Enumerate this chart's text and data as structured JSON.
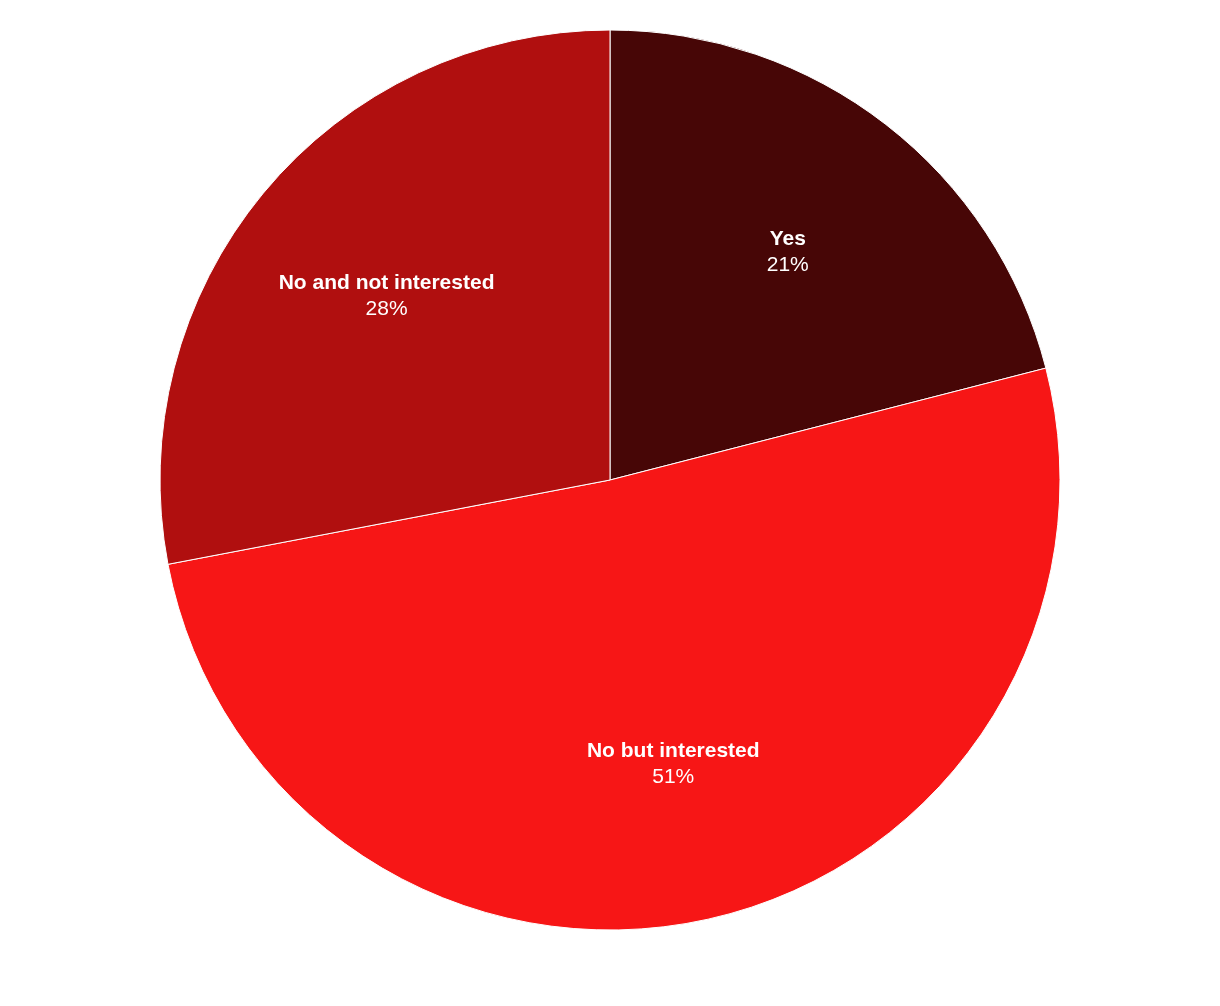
{
  "chart_data": {
    "type": "pie",
    "categories": [
      "Yes",
      "No but interested",
      "No and not interested"
    ],
    "values": [
      21,
      51,
      28
    ],
    "colors": [
      "#470606",
      "#f71616",
      "#b00f0f"
    ],
    "value_labels": [
      "21%",
      "51%",
      "28%"
    ],
    "legend": false
  }
}
